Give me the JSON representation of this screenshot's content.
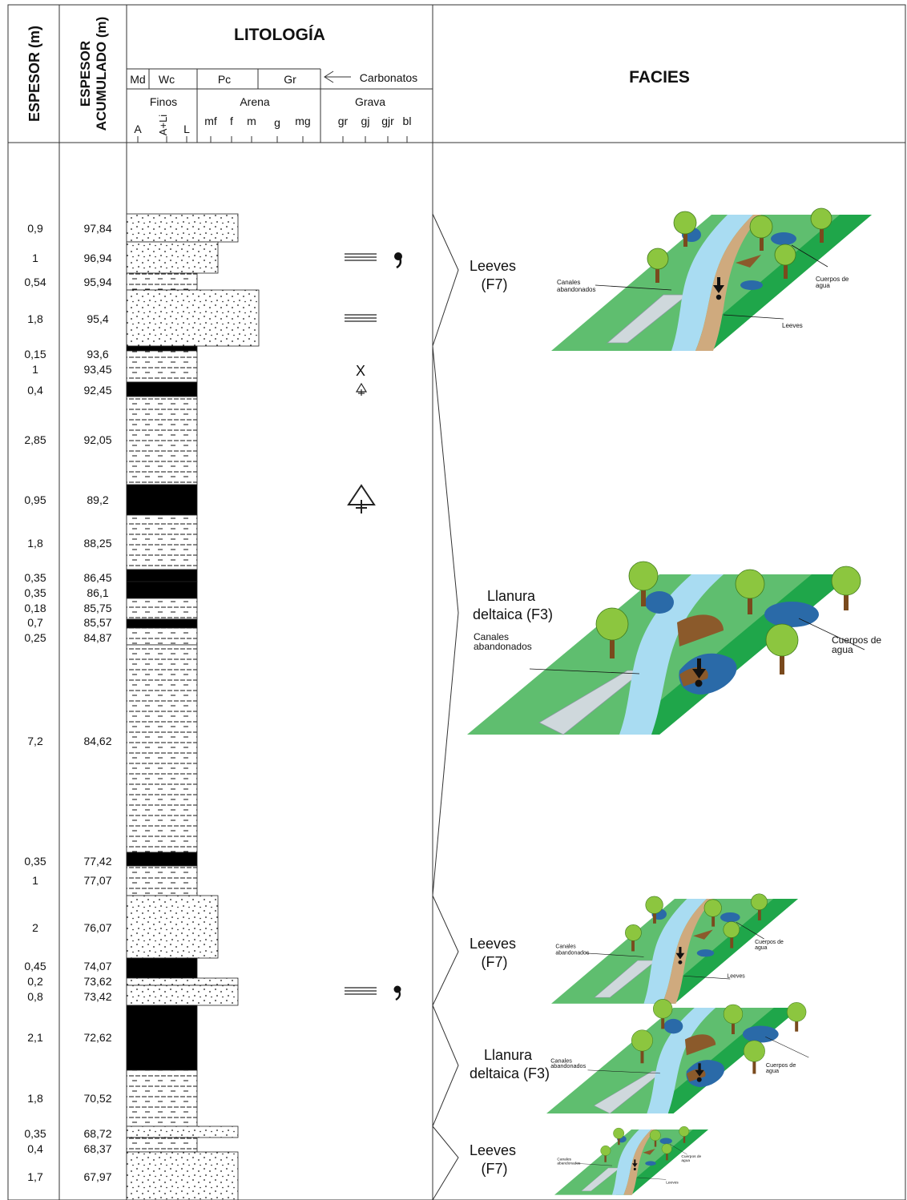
{
  "headers": {
    "espesor": "ESPESOR (m)",
    "acumulado_1": "ESPESOR",
    "acumulado_2": "ACUMULADO (m)",
    "litologia": "LITOLOGÍA",
    "facies": "FACIES",
    "carb_md": "Md",
    "carb_wc": "Wc",
    "carb_pc": "Pc",
    "carb_gr": "Gr",
    "carbonatos": "Carbonatos",
    "finos": "Finos",
    "arena": "Arena",
    "grava": "Grava",
    "fine_a": "A",
    "fine_ali": "A+Li",
    "fine_l": "L",
    "sand_mf": "mf",
    "sand_f": "f",
    "sand_m": "m",
    "sand_g": "g",
    "sand_mg": "mg",
    "grav_gr": "gr",
    "grav_gj": "gj",
    "grav_gjr": "gjr",
    "grav_bl": "bl"
  },
  "layers": [
    {
      "thickness": "0,9",
      "cumulative": "97,84",
      "lith": "sand",
      "grain": "m"
    },
    {
      "thickness": "1",
      "cumulative": "96,94",
      "lith": "sand",
      "grain": "f"
    },
    {
      "thickness": "0,54",
      "cumulative": "95,94",
      "lith": "mud",
      "grain": "L"
    },
    {
      "thickness": "1,8",
      "cumulative": "95,4",
      "lith": "sand",
      "grain": "g"
    },
    {
      "thickness": "0,15",
      "cumulative": "93,6",
      "lith": "coal",
      "grain": "L"
    },
    {
      "thickness": "1",
      "cumulative": "93,45",
      "lith": "mud",
      "grain": "L"
    },
    {
      "thickness": "0,4",
      "cumulative": "92,45",
      "lith": "coal",
      "grain": "L"
    },
    {
      "thickness": "2,85",
      "cumulative": "92,05",
      "lith": "mud",
      "grain": "L"
    },
    {
      "thickness": "0,95",
      "cumulative": "89,2",
      "lith": "coal",
      "grain": "L"
    },
    {
      "thickness": "1,8",
      "cumulative": "88,25",
      "lith": "mud",
      "grain": "L"
    },
    {
      "thickness": "0,35",
      "cumulative": "86,45",
      "lith": "coal",
      "grain": "L"
    },
    {
      "thickness": "0,35",
      "cumulative": "86,1",
      "lith": "coal",
      "grain": "L"
    },
    {
      "thickness": "0,18",
      "cumulative": "85,75",
      "lith": "mud",
      "grain": "L"
    },
    {
      "thickness": "0,7",
      "cumulative": "85,57",
      "lith": "coal",
      "grain": "L"
    },
    {
      "thickness": "0,25",
      "cumulative": "84,87",
      "lith": "mud",
      "grain": "L"
    },
    {
      "thickness": "7,2",
      "cumulative": "84,62",
      "lith": "mud",
      "grain": "L"
    },
    {
      "thickness": "0,35",
      "cumulative": "77,42",
      "lith": "coal",
      "grain": "L"
    },
    {
      "thickness": "1",
      "cumulative": "77,07",
      "lith": "mud",
      "grain": "L"
    },
    {
      "thickness": "2",
      "cumulative": "76,07",
      "lith": "sand",
      "grain": "f"
    },
    {
      "thickness": "0,45",
      "cumulative": "74,07",
      "lith": "coal",
      "grain": "L"
    },
    {
      "thickness": "0,2",
      "cumulative": "73,62",
      "lith": "sand",
      "grain": "m"
    },
    {
      "thickness": "0,8",
      "cumulative": "73,42",
      "lith": "sand",
      "grain": "m"
    },
    {
      "thickness": "2,1",
      "cumulative": "72,62",
      "lith": "coal",
      "grain": "L"
    },
    {
      "thickness": "1,8",
      "cumulative": "70,52",
      "lith": "mud",
      "grain": "L"
    },
    {
      "thickness": "0,35",
      "cumulative": "68,72",
      "lith": "sand",
      "grain": "m"
    },
    {
      "thickness": "0,4",
      "cumulative": "68,37",
      "lith": "mud",
      "grain": "L"
    },
    {
      "thickness": "1,7",
      "cumulative": "67,97",
      "lith": "sand",
      "grain": "m"
    }
  ],
  "facies": [
    {
      "line1": "Leeves",
      "line2": "(F7)",
      "block": {
        "canales_1": "Canales",
        "canales_2": "abandonados",
        "cuerpos_1": "Cuerpos de",
        "cuerpos_2": "agua",
        "leeves": "Leeves"
      }
    },
    {
      "line1": "Llanura",
      "line2": "deltaica (F3)",
      "block": {
        "canales_1": "Canales",
        "canales_2": "abandonados",
        "cuerpos_1": "Cuerpos de",
        "cuerpos_2": "agua"
      }
    },
    {
      "line1": "Leeves",
      "line2": "(F7)",
      "block": {
        "canales_1": "Canales",
        "canales_2": "abandonados",
        "cuerpos_1": "Cuerpos de",
        "cuerpos_2": "agua",
        "leeves": "Leeves"
      }
    },
    {
      "line1": "Llanura",
      "line2": "deltaica (F3)",
      "block": {
        "canales_1": "Canales",
        "canales_2": "abandonados",
        "cuerpos_1": "Cuerpos de",
        "cuerpos_2": "agua"
      }
    },
    {
      "line1": "Leeves",
      "line2": "(F7)",
      "block": {
        "canales_1": "Canales",
        "canales_2": "abandonados",
        "cuerpos_1": "Cuerpos de",
        "cuerpos_2": "agua",
        "leeves": "Leeves"
      }
    }
  ],
  "symbols": {
    "cross_bedding": "X",
    "plant_symbol": "plant-remains-icon",
    "bioturbation_symbol": "comma-icon",
    "lamination_symbol": "parallel-lamination-icon"
  },
  "colors": {
    "grass": "#1fa64a",
    "grass_light": "#5fbe6f",
    "river": "#a9dcf2",
    "levee": "#cfaa7e",
    "abandoned": "#cfd8dc",
    "pond": "#2a6aa8",
    "mud_bank": "#8b5a2b",
    "tree_crown": "#8cc63f",
    "tree_trunk": "#7a4a1d"
  }
}
